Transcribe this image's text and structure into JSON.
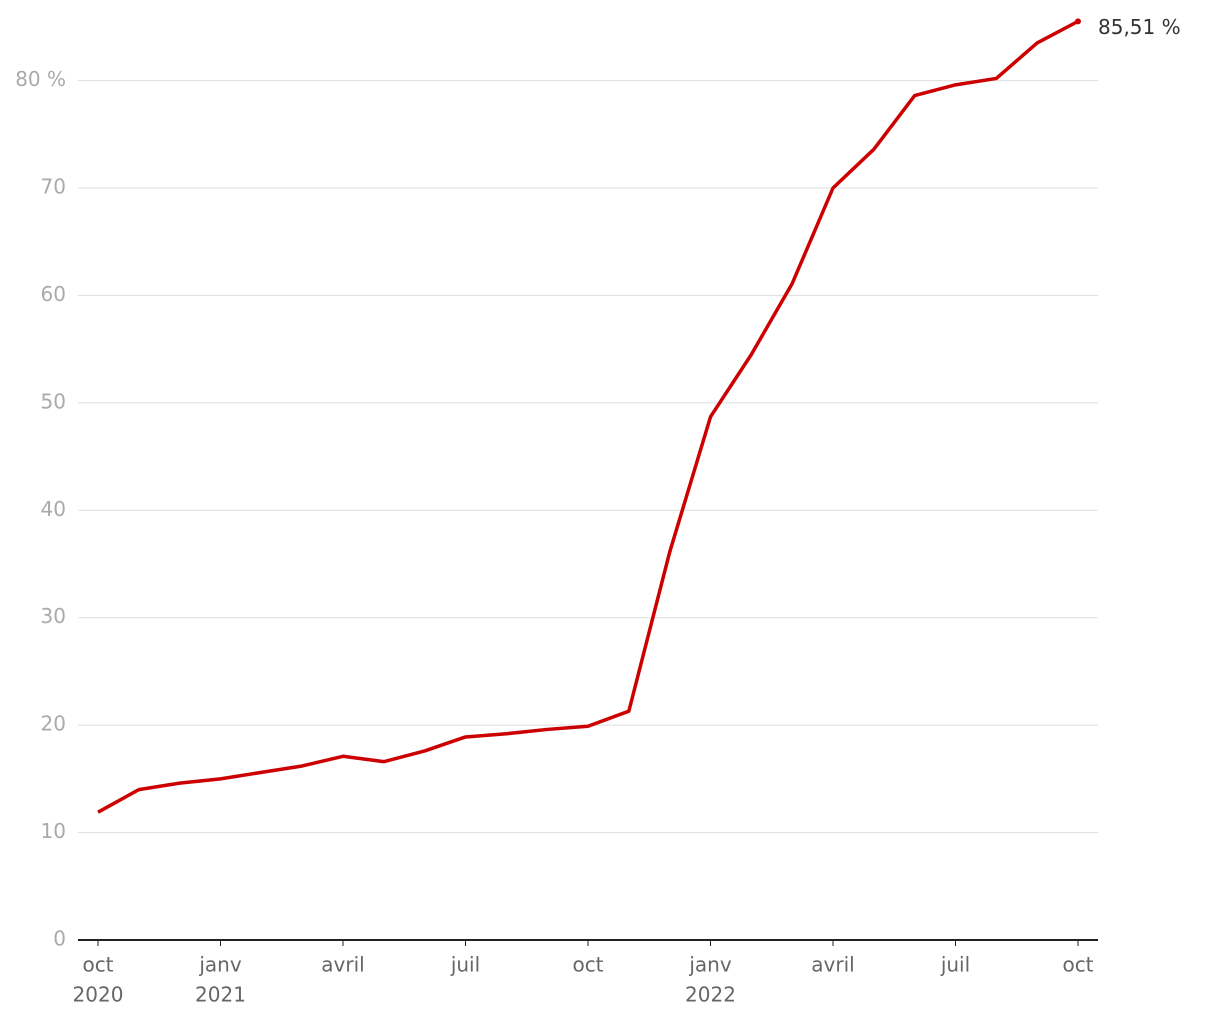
{
  "chart_data": {
    "type": "line",
    "x": [
      "2020-10",
      "2020-11",
      "2020-12",
      "2021-01",
      "2021-02",
      "2021-03",
      "2021-04",
      "2021-05",
      "2021-06",
      "2021-07",
      "2021-08",
      "2021-09",
      "2021-10",
      "2021-11",
      "2021-12",
      "2022-01",
      "2022-02",
      "2022-03",
      "2022-04",
      "2022-05",
      "2022-06",
      "2022-07",
      "2022-08",
      "2022-09",
      "2022-10"
    ],
    "values": [
      11.9,
      14.0,
      14.6,
      15.0,
      15.6,
      16.2,
      17.1,
      16.6,
      17.6,
      18.9,
      19.2,
      19.6,
      19.9,
      21.3,
      36.1,
      48.7,
      54.5,
      61.1,
      70.0,
      73.6,
      78.6,
      79.6,
      80.2,
      83.5,
      85.51
    ],
    "value_labels": [
      null,
      null,
      null,
      null,
      null,
      null,
      null,
      null,
      null,
      null,
      null,
      null,
      null,
      null,
      null,
      null,
      null,
      null,
      null,
      null,
      null,
      null,
      null,
      null,
      "85,51 %"
    ],
    "color": "#cc0000",
    "ylim": [
      0,
      87.5
    ],
    "yticks": [
      0,
      10,
      20,
      30,
      40,
      50,
      60,
      70,
      {
        "value": 80,
        "label": "80 %"
      }
    ],
    "xticks": [
      {
        "value": "2020-10",
        "label": [
          "oct",
          "2020"
        ]
      },
      {
        "value": "2021-01",
        "label": [
          "janv",
          "2021"
        ]
      },
      {
        "value": "2021-04",
        "label": [
          "avril"
        ]
      },
      {
        "value": "2021-07",
        "label": [
          "juil"
        ]
      },
      {
        "value": "2021-10",
        "label": [
          "oct"
        ]
      },
      {
        "value": "2022-01",
        "label": [
          "janv",
          "2022"
        ]
      },
      {
        "value": "2022-04",
        "label": [
          "avril"
        ]
      },
      {
        "value": "2022-07",
        "label": [
          "juil"
        ]
      },
      {
        "value": "2022-10",
        "label": [
          "oct"
        ]
      }
    ],
    "grid": true
  }
}
